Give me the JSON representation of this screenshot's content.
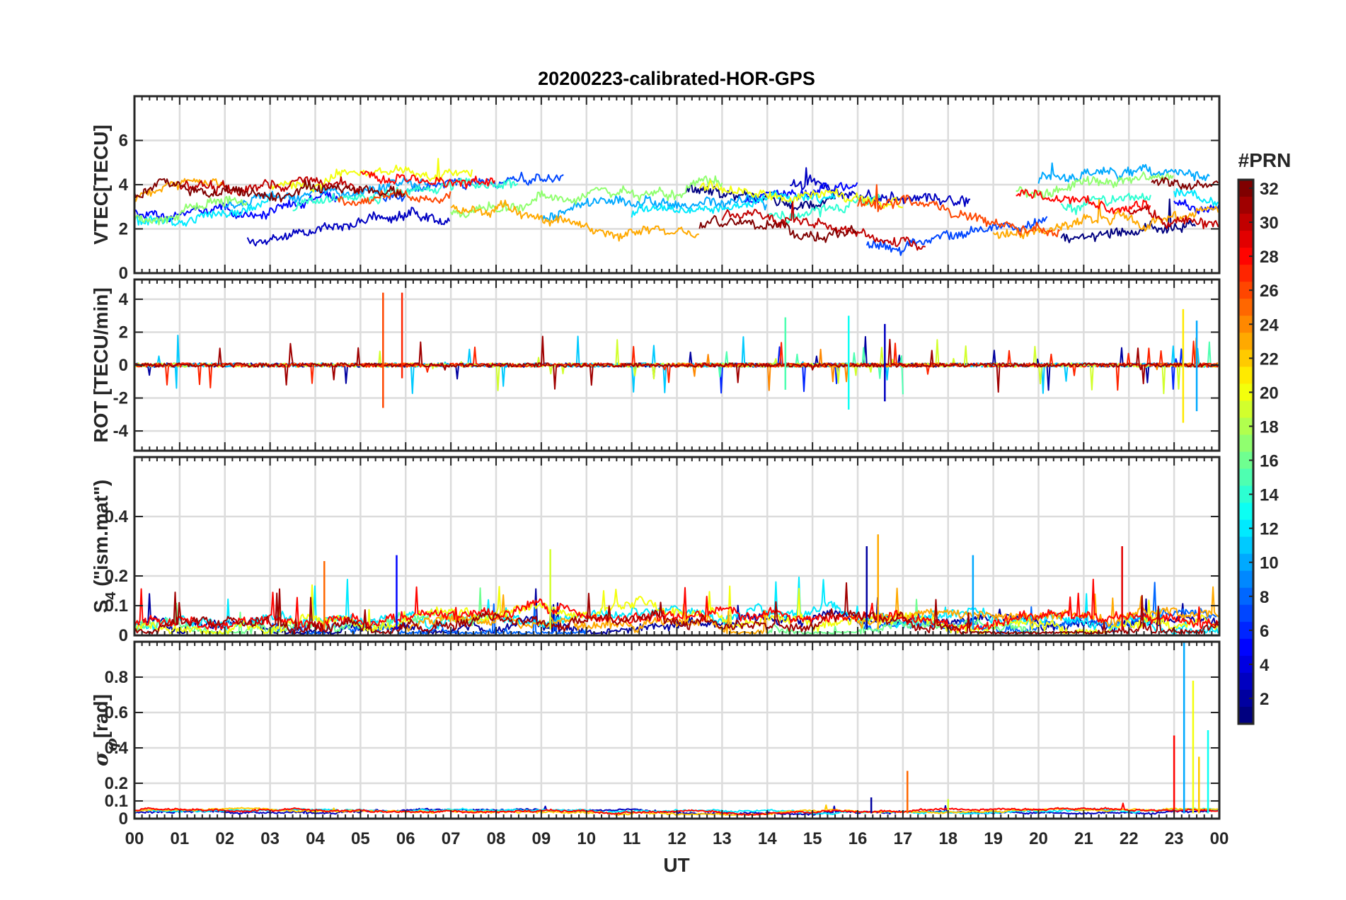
{
  "chart_data": {
    "type": "line",
    "title": "20200223-calibrated-HOR-GPS",
    "xlabel": "UT",
    "x_ticks": [
      "00",
      "01",
      "02",
      "03",
      "04",
      "05",
      "06",
      "07",
      "08",
      "09",
      "10",
      "11",
      "12",
      "13",
      "14",
      "15",
      "16",
      "17",
      "18",
      "19",
      "20",
      "21",
      "22",
      "23",
      "00"
    ],
    "xlim_hours": [
      0,
      24
    ],
    "grid": true,
    "panels": [
      {
        "id": "vtec",
        "ylabel": "VTEC[TECU]",
        "ylim": [
          0,
          8
        ],
        "yticks": [
          "0",
          "2",
          "4",
          "6"
        ],
        "ytick_values": [
          0,
          2,
          4,
          6
        ],
        "base": 3.0,
        "amp": 1.2,
        "noise": 0.35,
        "spike_prob": 0.002,
        "spike_amp": 2,
        "clip_min": 0.3,
        "series": [
          {
            "prn": 1,
            "segments": [
              [
                12.2,
                15.5
              ],
              [
                20.5,
                23.5
              ]
            ]
          },
          {
            "prn": 3,
            "segments": [
              [
                2.5,
                7.0
              ],
              [
                14.5,
                18.5
              ]
            ]
          },
          {
            "prn": 5,
            "segments": [
              [
                0,
                4.5
              ],
              [
                13.5,
                16.0
              ],
              [
                23.0,
                24
              ]
            ]
          },
          {
            "prn": 7,
            "segments": [
              [
                5.5,
                9.5
              ],
              [
                16.2,
                20.2
              ]
            ]
          },
          {
            "prn": 10,
            "segments": [
              [
                2.0,
                6.5
              ],
              [
                9.0,
                14.0
              ],
              [
                20.0,
                23.8
              ]
            ]
          },
          {
            "prn": 12,
            "segments": [
              [
                0,
                3.0
              ],
              [
                11.0,
                15.5
              ],
              [
                23.0,
                24
              ]
            ]
          },
          {
            "prn": 14,
            "segments": [
              [
                3.5,
                8.5
              ],
              [
                14.0,
                16.5
              ],
              [
                20.5,
                22.5
              ]
            ]
          },
          {
            "prn": 17,
            "segments": [
              [
                0,
                2.5
              ],
              [
                7.0,
                13.0
              ],
              [
                19.5,
                23.0
              ]
            ]
          },
          {
            "prn": 20,
            "segments": [
              [
                3.0,
                7.5
              ],
              [
                12.5,
                17.0
              ]
            ]
          },
          {
            "prn": 23,
            "segments": [
              [
                0,
                2.0
              ],
              [
                7.0,
                12.5
              ],
              [
                19.0,
                24
              ]
            ]
          },
          {
            "prn": 26,
            "segments": [
              [
                4.5,
                7.0
              ],
              [
                16.0,
                20.5
              ]
            ]
          },
          {
            "prn": 28,
            "segments": [
              [
                5.0,
                8.0
              ],
              [
                19.5,
                22.5
              ]
            ]
          },
          {
            "prn": 30,
            "segments": [
              [
                1.0,
                5.0
              ],
              [
                13.0,
                17.5
              ],
              [
                22.0,
                24
              ]
            ]
          },
          {
            "prn": 32,
            "segments": [
              [
                0,
                6.0
              ],
              [
                12.5,
                16.0
              ],
              [
                22.5,
                24
              ]
            ]
          }
        ]
      },
      {
        "id": "rot",
        "ylabel": "ROT [TECU/min]",
        "ylim": [
          -5.2,
          5.2
        ],
        "yticks": [
          "-4",
          "-2",
          "0",
          "2",
          "4"
        ],
        "ytick_values": [
          -4,
          -2,
          0,
          2,
          4
        ],
        "base": 0,
        "amp": 0,
        "noise": 0.12,
        "spike_prob": 0.03,
        "spike_amp": 1.8,
        "symmetric": true,
        "series": [
          {
            "prn": 2,
            "segments": [
              [
                0,
                24
              ]
            ]
          },
          {
            "prn": 6,
            "segments": [
              [
                12.5,
                16.0
              ],
              [
                22.5,
                24
              ]
            ]
          },
          {
            "prn": 11,
            "segments": [
              [
                0,
                24
              ]
            ]
          },
          {
            "prn": 15,
            "segments": [
              [
                12.8,
                17.0
              ],
              [
                23.0,
                24
              ]
            ]
          },
          {
            "prn": 19,
            "segments": [
              [
                0,
                24
              ]
            ]
          },
          {
            "prn": 24,
            "segments": [
              [
                5.0,
                6.5
              ],
              [
                12.0,
                18.0
              ],
              [
                22.5,
                24
              ]
            ]
          },
          {
            "prn": 27,
            "segments": [
              [
                0,
                24
              ]
            ]
          },
          {
            "prn": 31,
            "segments": [
              [
                0,
                24
              ]
            ]
          }
        ],
        "spikes": [
          {
            "x": 5.5,
            "top": 4.4,
            "bottom": -2.6,
            "prn": 26
          },
          {
            "x": 5.92,
            "top": 4.4,
            "bottom": -0.8,
            "prn": 27
          },
          {
            "x": 14.4,
            "top": 2.9,
            "bottom": -1.5,
            "prn": 15
          },
          {
            "x": 15.8,
            "top": 3.0,
            "bottom": -2.7,
            "prn": 13
          },
          {
            "x": 16.6,
            "top": 2.5,
            "bottom": -2.2,
            "prn": 3
          },
          {
            "x": 23.2,
            "top": 3.4,
            "bottom": -3.5,
            "prn": 21
          },
          {
            "x": 23.5,
            "top": 2.7,
            "bottom": -2.8,
            "prn": 10
          }
        ]
      },
      {
        "id": "s4",
        "ylabel": "S4 (\"ism.mat\")",
        "ylim": [
          0,
          0.6
        ],
        "yticks": [
          "0",
          "0.1",
          "0.2",
          "0.4"
        ],
        "ytick_values": [
          0,
          0.1,
          0.2,
          0.4
        ],
        "base": 0.04,
        "amp": 0.02,
        "noise": 0.025,
        "spike_prob": 0.02,
        "spike_amp": 0.12,
        "clip_min": 0.005,
        "series": [
          {
            "prn": 2,
            "segments": [
              [
                0,
                24
              ]
            ]
          },
          {
            "prn": 8,
            "segments": [
              [
                3.0,
                10.0
              ],
              [
                16.0,
                24
              ]
            ]
          },
          {
            "prn": 12,
            "segments": [
              [
                0,
                24
              ]
            ]
          },
          {
            "prn": 16,
            "segments": [
              [
                0,
                8.0
              ],
              [
                14.0,
                20.0
              ]
            ]
          },
          {
            "prn": 20,
            "segments": [
              [
                0,
                24
              ]
            ]
          },
          {
            "prn": 23,
            "segments": [
              [
                6.0,
                14.0
              ],
              [
                16.0,
                24
              ]
            ]
          },
          {
            "prn": 28,
            "segments": [
              [
                0,
                24
              ]
            ]
          },
          {
            "prn": 31,
            "segments": [
              [
                0,
                24
              ]
            ]
          }
        ],
        "spikes": [
          {
            "x": 16.45,
            "top": 0.34,
            "bottom": 0.02,
            "prn": 23
          },
          {
            "x": 16.2,
            "top": 0.3,
            "bottom": 0.02,
            "prn": 2
          },
          {
            "x": 21.85,
            "top": 0.3,
            "bottom": 0.02,
            "prn": 29
          },
          {
            "x": 9.2,
            "top": 0.29,
            "bottom": 0.02,
            "prn": 19
          },
          {
            "x": 5.8,
            "top": 0.27,
            "bottom": 0.02,
            "prn": 5
          },
          {
            "x": 18.55,
            "top": 0.27,
            "bottom": 0.02,
            "prn": 10
          },
          {
            "x": 4.2,
            "top": 0.25,
            "bottom": 0.02,
            "prn": 25
          }
        ]
      },
      {
        "id": "sigma",
        "ylabel": "σφ[rad]",
        "ylim": [
          0,
          1.0
        ],
        "yticks": [
          "0",
          "0.1",
          "0.2",
          "0.4",
          "0.6",
          "0.8"
        ],
        "ytick_values": [
          0,
          0.1,
          0.2,
          0.4,
          0.6,
          0.8
        ],
        "base": 0.045,
        "amp": 0.01,
        "noise": 0.008,
        "spike_prob": 0.004,
        "spike_amp": 0.04,
        "clip_min": 0.02,
        "series": [
          {
            "prn": 3,
            "segments": [
              [
                0,
                24
              ]
            ]
          },
          {
            "prn": 12,
            "segments": [
              [
                0,
                24
              ]
            ]
          },
          {
            "prn": 22,
            "segments": [
              [
                0,
                24
              ]
            ]
          },
          {
            "prn": 28,
            "segments": [
              [
                0,
                24
              ]
            ]
          }
        ],
        "spikes": [
          {
            "x": 23.22,
            "top": 1.0,
            "bottom": 0.03,
            "prn": 10
          },
          {
            "x": 23.42,
            "top": 0.78,
            "bottom": 0.03,
            "prn": 20
          },
          {
            "x": 23.0,
            "top": 0.47,
            "bottom": 0.03,
            "prn": 28
          },
          {
            "x": 23.75,
            "top": 0.5,
            "bottom": 0.03,
            "prn": 13
          },
          {
            "x": 23.55,
            "top": 0.35,
            "bottom": 0.03,
            "prn": 22
          },
          {
            "x": 17.1,
            "top": 0.27,
            "bottom": 0.03,
            "prn": 25
          },
          {
            "x": 16.3,
            "top": 0.12,
            "bottom": 0.03,
            "prn": 2
          },
          {
            "x": 18.0,
            "top": 0.11,
            "bottom": 0.03,
            "prn": 19
          }
        ]
      }
    ],
    "colorbar": {
      "label": "#PRN",
      "min": 1,
      "max": 32,
      "ticks": [
        "2",
        "4",
        "6",
        "8",
        "10",
        "12",
        "14",
        "16",
        "18",
        "20",
        "22",
        "24",
        "26",
        "28",
        "30",
        "32"
      ],
      "tick_values": [
        2,
        4,
        6,
        8,
        10,
        12,
        14,
        16,
        18,
        20,
        22,
        24,
        26,
        28,
        30,
        32
      ],
      "colormap": "jet"
    }
  }
}
